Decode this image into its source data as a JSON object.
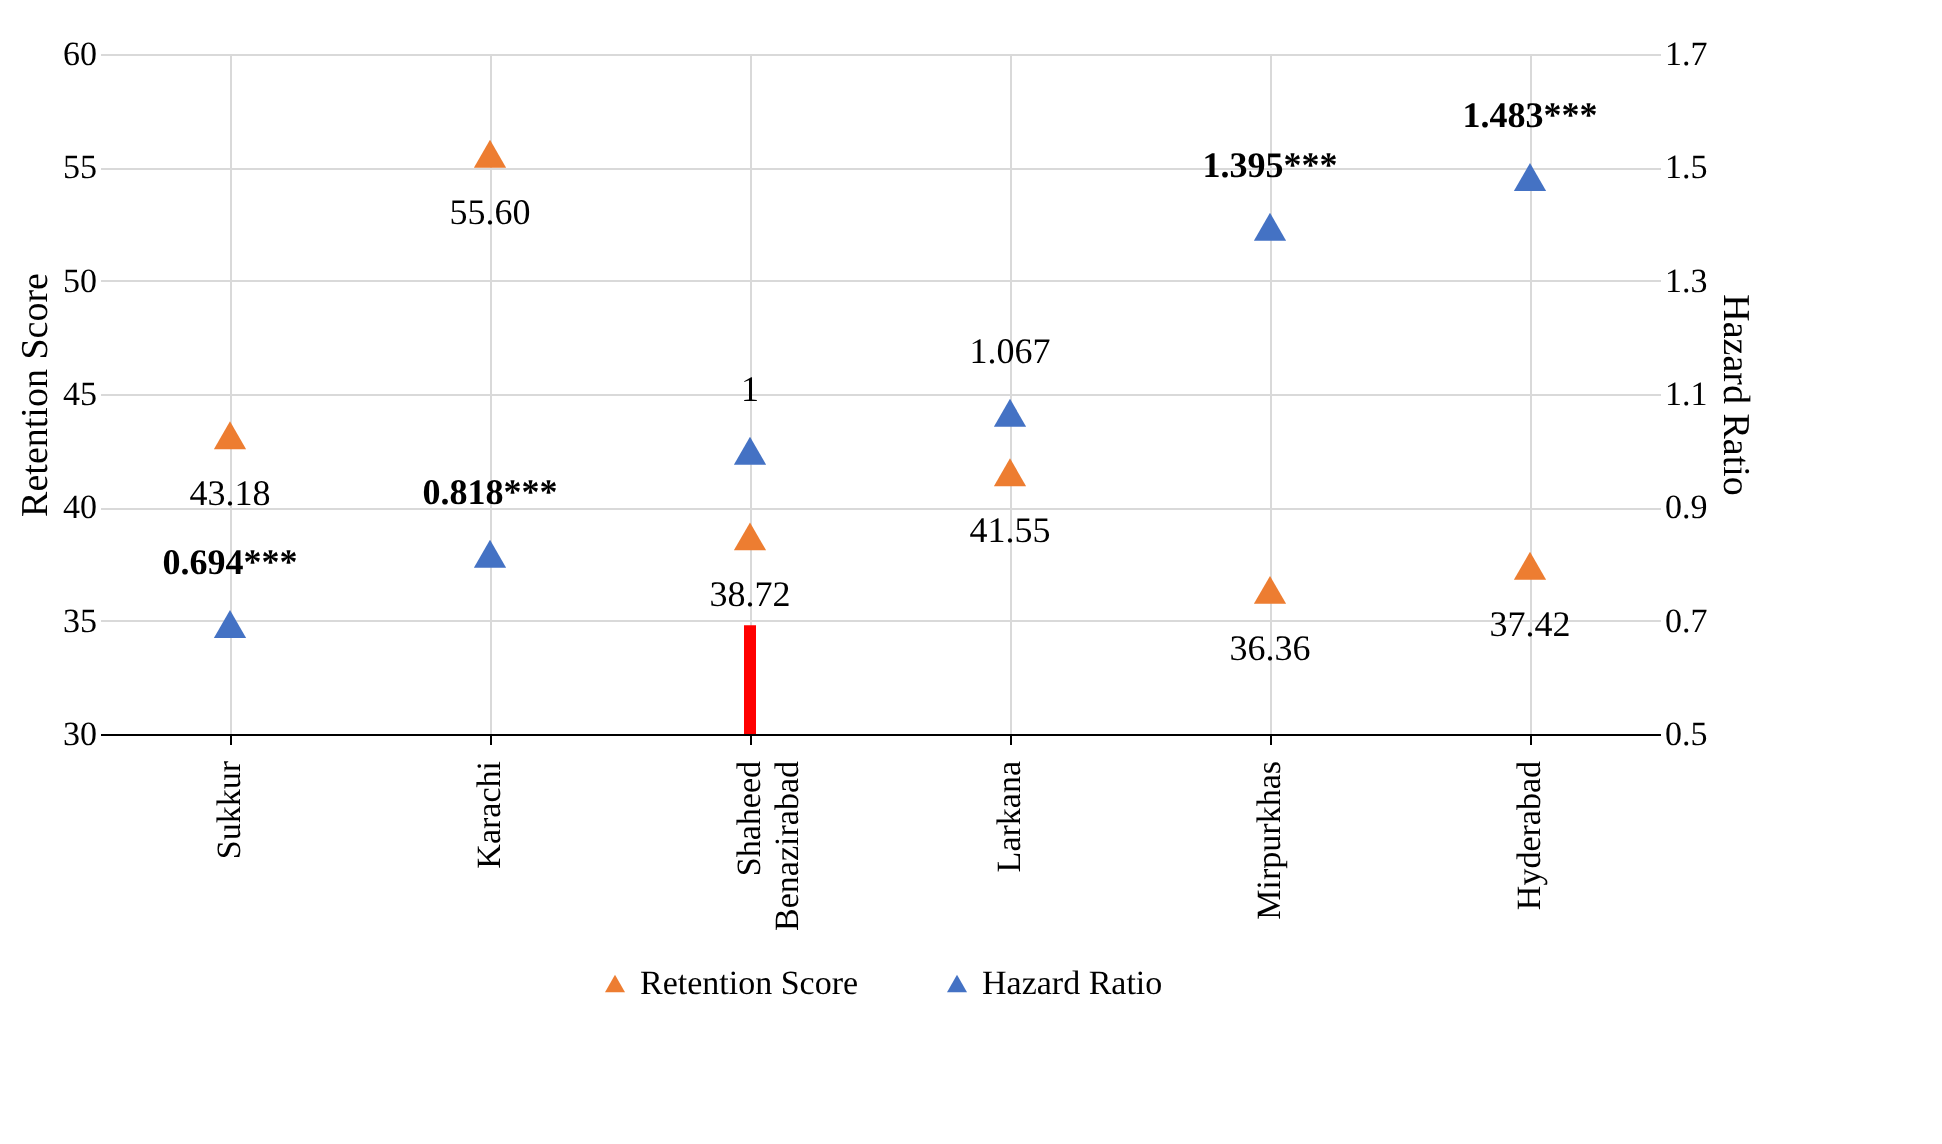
{
  "chart_data": {
    "type": "scatter",
    "ylabel": "Retention Score",
    "y2label": "Hazard Ratio",
    "categories": [
      "Sukkur",
      "Karachi",
      "Shaheed Benazirabad",
      "Larkana",
      "Mirpurkhas",
      "Hyderabad"
    ],
    "ylim": [
      30,
      60
    ],
    "yticks": [
      30,
      35,
      40,
      45,
      50,
      55,
      60
    ],
    "y2lim": [
      0.5,
      1.7
    ],
    "y2ticks": [
      0.5,
      0.7,
      0.9,
      1.1,
      1.3,
      1.5,
      1.7
    ],
    "grid": true,
    "legend": "bottom",
    "marker": "triangle",
    "series": [
      {
        "name": "Retention Score",
        "color": "#ed7d31",
        "values": [
          43.18,
          55.6,
          38.72,
          41.55,
          36.36,
          37.42
        ],
        "value_labels": [
          "43.18",
          "55.60",
          "38.72",
          "41.55",
          "36.36",
          "37.42"
        ]
      },
      {
        "name": "Hazard Ratio",
        "color": "#4472c4",
        "axis": "y2",
        "values": [
          0.694,
          0.818,
          1,
          1.067,
          1.395,
          1.483
        ],
        "value_labels": [
          "0.694***",
          "0.818***",
          "1",
          "1.067",
          "1.395***",
          "1.483***"
        ]
      },
      {
        "type": "bar",
        "color": "#ff0000",
        "values": [
          null,
          null,
          34.8,
          null,
          null,
          null
        ]
      }
    ]
  }
}
